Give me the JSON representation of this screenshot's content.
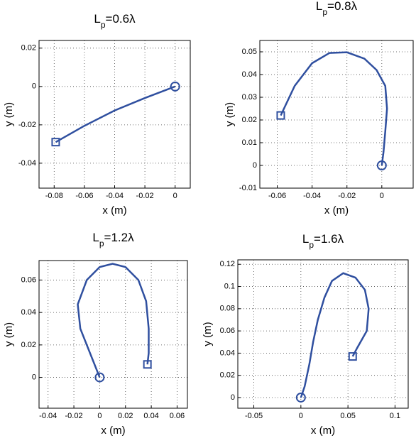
{
  "chart_data": [
    {
      "type": "line",
      "title": [
        "L",
        "p",
        "=0.6λ"
      ],
      "xlabel": "x (m)",
      "ylabel": "y (m)",
      "color": "#2f4f9f",
      "start_marker": "square",
      "end_marker": "circle",
      "grid": true,
      "x": [
        -0.079,
        -0.06,
        -0.04,
        -0.02,
        0
      ],
      "y": [
        -0.029,
        -0.0205,
        -0.0125,
        -0.006,
        0
      ],
      "xlim": [
        -0.09,
        0.01
      ],
      "ylim": [
        -0.053,
        0.024
      ],
      "xticks": [
        -0.08,
        -0.06,
        -0.04,
        -0.02,
        0
      ],
      "yticks": [
        -0.04,
        -0.02,
        0,
        0.02
      ]
    },
    {
      "type": "line",
      "title": [
        "L",
        "p",
        "=0.8λ"
      ],
      "xlabel": "x (m)",
      "ylabel": "y (m)",
      "color": "#2f4f9f",
      "start_marker": "square",
      "end_marker": "circle",
      "grid": true,
      "x": [
        -0.058,
        -0.05,
        -0.04,
        -0.03,
        -0.02,
        -0.01,
        -0.003,
        0.002,
        0.003,
        0.002,
        0.001,
        0
      ],
      "y": [
        0.022,
        0.035,
        0.045,
        0.0495,
        0.0498,
        0.047,
        0.042,
        0.035,
        0.025,
        0.015,
        0.006,
        0
      ],
      "xlim": [
        -0.07,
        0.018
      ],
      "ylim": [
        -0.01,
        0.055
      ],
      "xticks": [
        -0.06,
        -0.04,
        -0.02,
        0
      ],
      "yticks": [
        -0.01,
        0,
        0.01,
        0.02,
        0.03,
        0.04,
        0.05
      ]
    },
    {
      "type": "line",
      "title": [
        "L",
        "p",
        "=1.2λ"
      ],
      "xlabel": "x (m)",
      "ylabel": "y (m)",
      "color": "#2f4f9f",
      "start_marker": "square",
      "end_marker": "circle",
      "grid": true,
      "x": [
        0.037,
        0.038,
        0.038,
        0.036,
        0.03,
        0.02,
        0.01,
        0,
        -0.01,
        -0.017,
        -0.015,
        0
      ],
      "y": [
        0.008,
        0.015,
        0.03,
        0.047,
        0.06,
        0.068,
        0.07,
        0.068,
        0.06,
        0.045,
        0.03,
        0
      ],
      "xlim": [
        -0.047,
        0.068
      ],
      "ylim": [
        -0.019,
        0.072
      ],
      "xticks": [
        -0.04,
        -0.02,
        0,
        0.02,
        0.04,
        0.06
      ],
      "yticks": [
        0,
        0.02,
        0.04,
        0.06
      ]
    },
    {
      "type": "line",
      "title": [
        "L",
        "p",
        "=1.6λ"
      ],
      "xlabel": "x (m)",
      "ylabel": "y (m)",
      "color": "#2f4f9f",
      "start_marker": "square",
      "end_marker": "circle",
      "grid": true,
      "x": [
        0.055,
        0.06,
        0.07,
        0.072,
        0.068,
        0.058,
        0.045,
        0.033,
        0.025,
        0.018,
        0.013,
        0.009,
        0.004,
        0
      ],
      "y": [
        0.037,
        0.045,
        0.06,
        0.08,
        0.097,
        0.108,
        0.112,
        0.105,
        0.09,
        0.07,
        0.05,
        0.03,
        0.01,
        0
      ],
      "xlim": [
        -0.067,
        0.114
      ],
      "ylim": [
        -0.0096,
        0.124
      ],
      "xticks": [
        -0.05,
        0,
        0.05,
        0.1
      ],
      "yticks": [
        0,
        0.02,
        0.04,
        0.06,
        0.08,
        0.1,
        0.12
      ]
    }
  ]
}
